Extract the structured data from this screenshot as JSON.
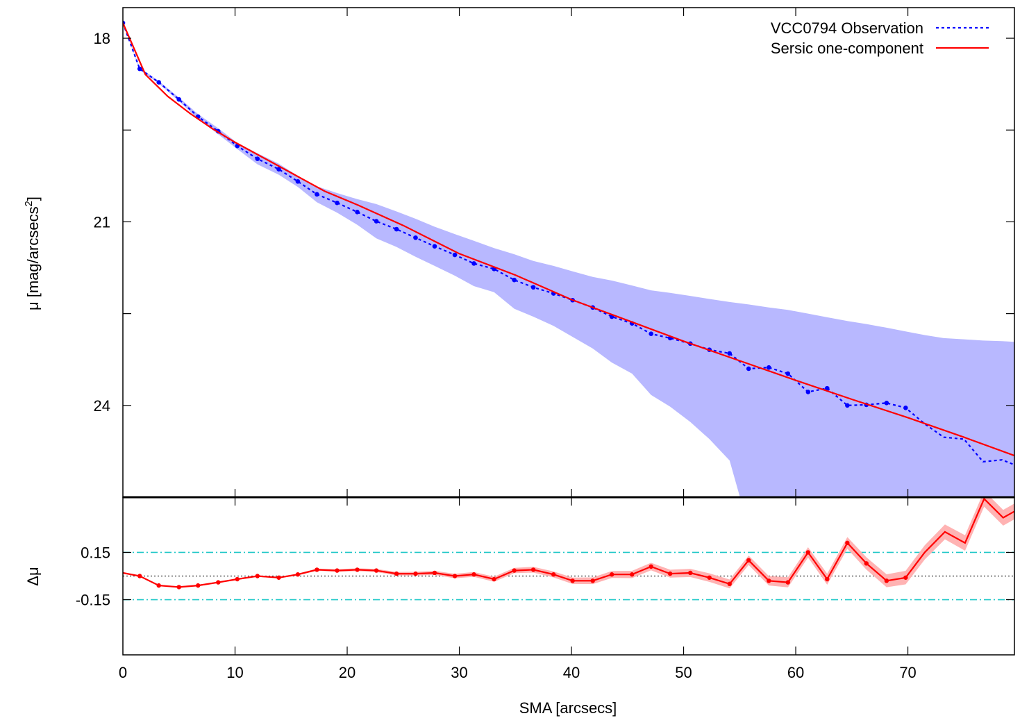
{
  "chart_data": [
    {
      "type": "line",
      "panel": "top",
      "ylabel": "μ [mag/arcsecs²]",
      "ylabel_main": "μ [mag/arcsecs",
      "ylabel_sup": "2",
      "ylabel_close": "]",
      "xlim": [
        0,
        79.5
      ],
      "ylim": [
        17.5,
        25.5
      ],
      "y_inverted": true,
      "yticks": [
        18,
        21,
        24
      ],
      "ytick_labels": [
        "18",
        "21",
        "24"
      ],
      "xticks": [
        10,
        20,
        30,
        40,
        50,
        60,
        70
      ],
      "legend_position": "top-right",
      "series": [
        {
          "name": "VCC0794 Observation",
          "color": "#0000ff",
          "style": "dotted",
          "x": [
            0,
            1.5,
            3.2,
            5.0,
            6.7,
            8.5,
            10.2,
            12.0,
            13.9,
            15.6,
            17.3,
            19.1,
            20.9,
            22.6,
            24.4,
            26.1,
            27.8,
            29.6,
            31.3,
            33.1,
            34.9,
            36.6,
            38.4,
            40.1,
            41.9,
            43.6,
            45.4,
            47.1,
            48.8,
            50.6,
            52.3,
            54.1,
            55.8,
            57.6,
            59.3,
            61.1,
            62.8,
            64.6,
            66.3,
            68.1,
            69.8,
            71.5,
            73.2,
            75.0,
            76.7,
            78.4,
            79.5
          ],
          "y": [
            17.75,
            18.5,
            18.72,
            19.0,
            19.28,
            19.52,
            19.76,
            19.97,
            20.14,
            20.34,
            20.55,
            20.69,
            20.84,
            20.99,
            21.12,
            21.26,
            21.4,
            21.54,
            21.68,
            21.77,
            21.95,
            22.07,
            22.17,
            22.28,
            22.4,
            22.55,
            22.66,
            22.83,
            22.9,
            22.99,
            23.09,
            23.15,
            23.4,
            23.38,
            23.48,
            23.78,
            23.72,
            24.0,
            23.99,
            23.96,
            24.04,
            24.3,
            24.52,
            24.55,
            24.92,
            24.89,
            24.97
          ],
          "band_upper": [
            17.75,
            18.48,
            18.7,
            18.97,
            19.24,
            19.47,
            19.71,
            19.88,
            20.05,
            20.25,
            20.42,
            20.53,
            20.63,
            20.71,
            20.83,
            20.95,
            21.08,
            21.2,
            21.31,
            21.43,
            21.53,
            21.64,
            21.72,
            21.81,
            21.9,
            21.96,
            22.04,
            22.12,
            22.16,
            22.21,
            22.26,
            22.31,
            22.35,
            22.4,
            22.44,
            22.5,
            22.56,
            22.62,
            22.67,
            22.73,
            22.79,
            22.85,
            22.9,
            22.92,
            22.94,
            22.95,
            22.96
          ],
          "band_lower": [
            17.75,
            18.52,
            18.74,
            19.03,
            19.32,
            19.57,
            19.81,
            20.06,
            20.23,
            20.43,
            20.68,
            20.85,
            21.05,
            21.27,
            21.41,
            21.57,
            21.72,
            21.88,
            22.05,
            22.15,
            22.42,
            22.55,
            22.7,
            22.88,
            23.07,
            23.3,
            23.48,
            23.83,
            24.02,
            24.27,
            24.55,
            24.9,
            26.0,
            26.0,
            26.0,
            26.0,
            26.0,
            26.0,
            26.0,
            26.0,
            26.0,
            26.0,
            26.0,
            26.0,
            26.0,
            26.0,
            26.0
          ]
        },
        {
          "name": "Sersic one-component",
          "color": "#ff0000",
          "style": "solid",
          "x": [
            0,
            2,
            4,
            6,
            8,
            10,
            12,
            15,
            18,
            21,
            25,
            30,
            35,
            40,
            45,
            50,
            55,
            60,
            65,
            70,
            75,
            79.5
          ],
          "y": [
            17.75,
            18.59,
            18.95,
            19.23,
            19.48,
            19.7,
            19.9,
            20.2,
            20.5,
            20.73,
            21.06,
            21.52,
            21.87,
            22.27,
            22.61,
            22.95,
            23.27,
            23.59,
            23.9,
            24.2,
            24.52,
            24.82
          ]
        }
      ]
    },
    {
      "type": "line",
      "panel": "bottom",
      "xlabel": "SMA [arcsecs]",
      "ylabel": "Δμ",
      "xlim": [
        0,
        79.5
      ],
      "ylim": [
        -0.5,
        0.5
      ],
      "yticks": [
        0.15,
        -0.15
      ],
      "ytick_labels": [
        "0.15",
        "-0.15"
      ],
      "reference_lines": [
        {
          "value": 0.15,
          "color": "#20c8c8",
          "style": "dash-dot"
        },
        {
          "value": -0.15,
          "color": "#20c8c8",
          "style": "dash-dot"
        },
        {
          "value": 0,
          "color": "#333333",
          "style": "dotted"
        }
      ],
      "xticks": [
        0,
        10,
        20,
        30,
        40,
        50,
        60,
        70
      ],
      "xtick_labels": [
        "0",
        "10",
        "20",
        "30",
        "40",
        "50",
        "60",
        "70"
      ],
      "series": [
        {
          "name": "",
          "color": "#ff0000",
          "style": "solid",
          "x": [
            0,
            1.5,
            3.2,
            5.0,
            6.7,
            8.5,
            10.2,
            12.0,
            13.9,
            15.6,
            17.3,
            19.1,
            20.9,
            22.6,
            24.4,
            26.1,
            27.8,
            29.6,
            31.3,
            33.1,
            34.9,
            36.6,
            38.4,
            40.1,
            41.9,
            43.6,
            45.4,
            47.1,
            48.8,
            50.6,
            52.3,
            54.1,
            55.8,
            57.6,
            59.3,
            61.1,
            62.8,
            64.6,
            66.3,
            68.1,
            69.8,
            71.5,
            73.3,
            75.1,
            76.8,
            78.5,
            79.5
          ],
          "y": [
            0.02,
            0.0,
            -0.06,
            -0.07,
            -0.06,
            -0.04,
            -0.02,
            0.0,
            -0.01,
            0.01,
            0.04,
            0.035,
            0.04,
            0.035,
            0.015,
            0.015,
            0.02,
            0.0,
            0.01,
            -0.02,
            0.035,
            0.04,
            0.01,
            -0.03,
            -0.03,
            0.01,
            0.01,
            0.06,
            0.015,
            0.02,
            -0.01,
            -0.05,
            0.1,
            -0.03,
            -0.04,
            0.15,
            -0.02,
            0.21,
            0.08,
            -0.03,
            -0.01,
            0.15,
            0.28,
            0.21,
            0.49,
            0.37,
            0.41
          ],
          "band_half_width": [
            0.005,
            0.005,
            0.005,
            0.005,
            0.005,
            0.005,
            0.005,
            0.005,
            0.005,
            0.006,
            0.007,
            0.008,
            0.009,
            0.01,
            0.011,
            0.012,
            0.013,
            0.014,
            0.015,
            0.016,
            0.017,
            0.018,
            0.019,
            0.02,
            0.021,
            0.022,
            0.023,
            0.024,
            0.025,
            0.026,
            0.027,
            0.028,
            0.03,
            0.03,
            0.032,
            0.033,
            0.035,
            0.037,
            0.039,
            0.041,
            0.043,
            0.045,
            0.047,
            0.049,
            0.05,
            0.05,
            0.05
          ]
        }
      ]
    }
  ]
}
